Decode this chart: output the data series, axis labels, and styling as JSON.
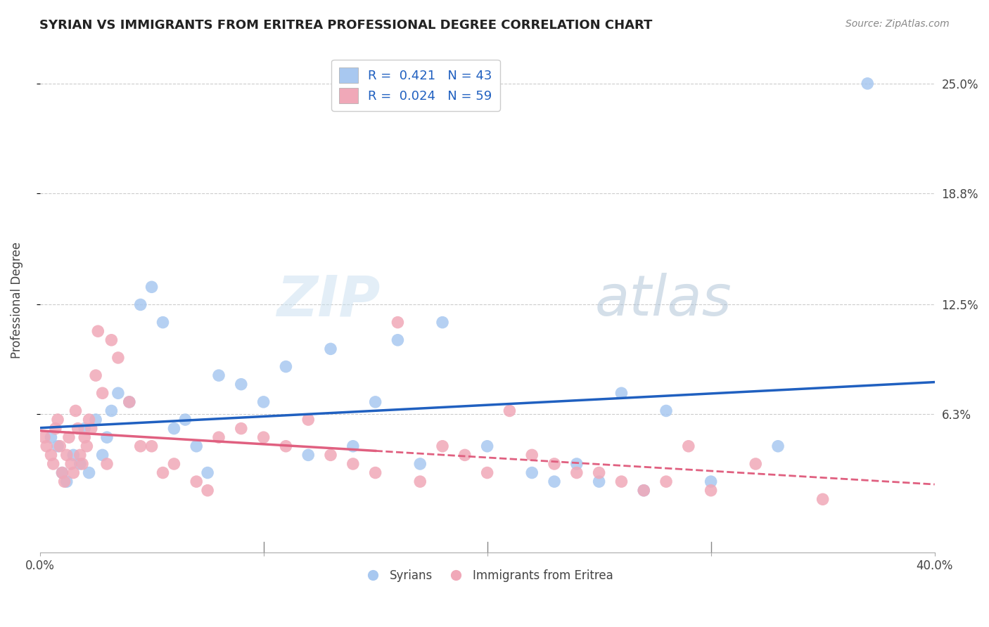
{
  "title": "SYRIAN VS IMMIGRANTS FROM ERITREA PROFESSIONAL DEGREE CORRELATION CHART",
  "source": "Source: ZipAtlas.com",
  "ylabel": "Professional Degree",
  "ytick_labels": [
    "6.3%",
    "12.5%",
    "18.8%",
    "25.0%"
  ],
  "ytick_values": [
    6.3,
    12.5,
    18.8,
    25.0
  ],
  "xmin": 0.0,
  "xmax": 40.0,
  "ymin": -1.5,
  "ymax": 27.0,
  "watermark_zip": "ZIP",
  "watermark_atlas": "atlas",
  "legend_label1": "R =  0.421   N = 43",
  "legend_label2": "R =  0.024   N = 59",
  "legend_footer1": "Syrians",
  "legend_footer2": "Immigrants from Eritrea",
  "syrians_color": "#a8c8f0",
  "eritrea_color": "#f0a8b8",
  "syrians_line_color": "#2060c0",
  "eritrea_line_color": "#e06080",
  "syrians_x": [
    0.5,
    0.8,
    1.0,
    1.2,
    1.5,
    1.8,
    2.0,
    2.2,
    2.5,
    2.8,
    3.0,
    3.2,
    3.5,
    4.0,
    4.5,
    5.0,
    5.5,
    6.0,
    6.5,
    7.0,
    7.5,
    8.0,
    9.0,
    10.0,
    11.0,
    12.0,
    13.0,
    14.0,
    15.0,
    16.0,
    17.0,
    18.0,
    20.0,
    22.0,
    23.0,
    24.0,
    25.0,
    26.0,
    27.0,
    28.0,
    30.0,
    33.0,
    37.0
  ],
  "syrians_y": [
    5.0,
    4.5,
    3.0,
    2.5,
    4.0,
    3.5,
    5.5,
    3.0,
    6.0,
    4.0,
    5.0,
    6.5,
    7.5,
    7.0,
    12.5,
    13.5,
    11.5,
    5.5,
    6.0,
    4.5,
    3.0,
    8.5,
    8.0,
    7.0,
    9.0,
    4.0,
    10.0,
    4.5,
    7.0,
    10.5,
    3.5,
    11.5,
    4.5,
    3.0,
    2.5,
    3.5,
    2.5,
    7.5,
    2.0,
    6.5,
    2.5,
    4.5,
    25.0
  ],
  "eritrea_x": [
    0.2,
    0.3,
    0.5,
    0.6,
    0.7,
    0.8,
    0.9,
    1.0,
    1.1,
    1.2,
    1.3,
    1.4,
    1.5,
    1.6,
    1.7,
    1.8,
    1.9,
    2.0,
    2.1,
    2.2,
    2.3,
    2.5,
    2.6,
    2.8,
    3.0,
    3.2,
    3.5,
    4.0,
    4.5,
    5.0,
    5.5,
    6.0,
    7.0,
    7.5,
    8.0,
    9.0,
    10.0,
    11.0,
    12.0,
    13.0,
    14.0,
    15.0,
    16.0,
    17.0,
    18.0,
    19.0,
    20.0,
    21.0,
    22.0,
    23.0,
    24.0,
    25.0,
    26.0,
    27.0,
    28.0,
    29.0,
    30.0,
    32.0,
    35.0
  ],
  "eritrea_y": [
    5.0,
    4.5,
    4.0,
    3.5,
    5.5,
    6.0,
    4.5,
    3.0,
    2.5,
    4.0,
    5.0,
    3.5,
    3.0,
    6.5,
    5.5,
    4.0,
    3.5,
    5.0,
    4.5,
    6.0,
    5.5,
    8.5,
    11.0,
    7.5,
    3.5,
    10.5,
    9.5,
    7.0,
    4.5,
    4.5,
    3.0,
    3.5,
    2.5,
    2.0,
    5.0,
    5.5,
    5.0,
    4.5,
    6.0,
    4.0,
    3.5,
    3.0,
    11.5,
    2.5,
    4.5,
    4.0,
    3.0,
    6.5,
    4.0,
    3.5,
    3.0,
    3.0,
    2.5,
    2.0,
    2.5,
    4.5,
    2.0,
    3.5,
    1.5
  ]
}
